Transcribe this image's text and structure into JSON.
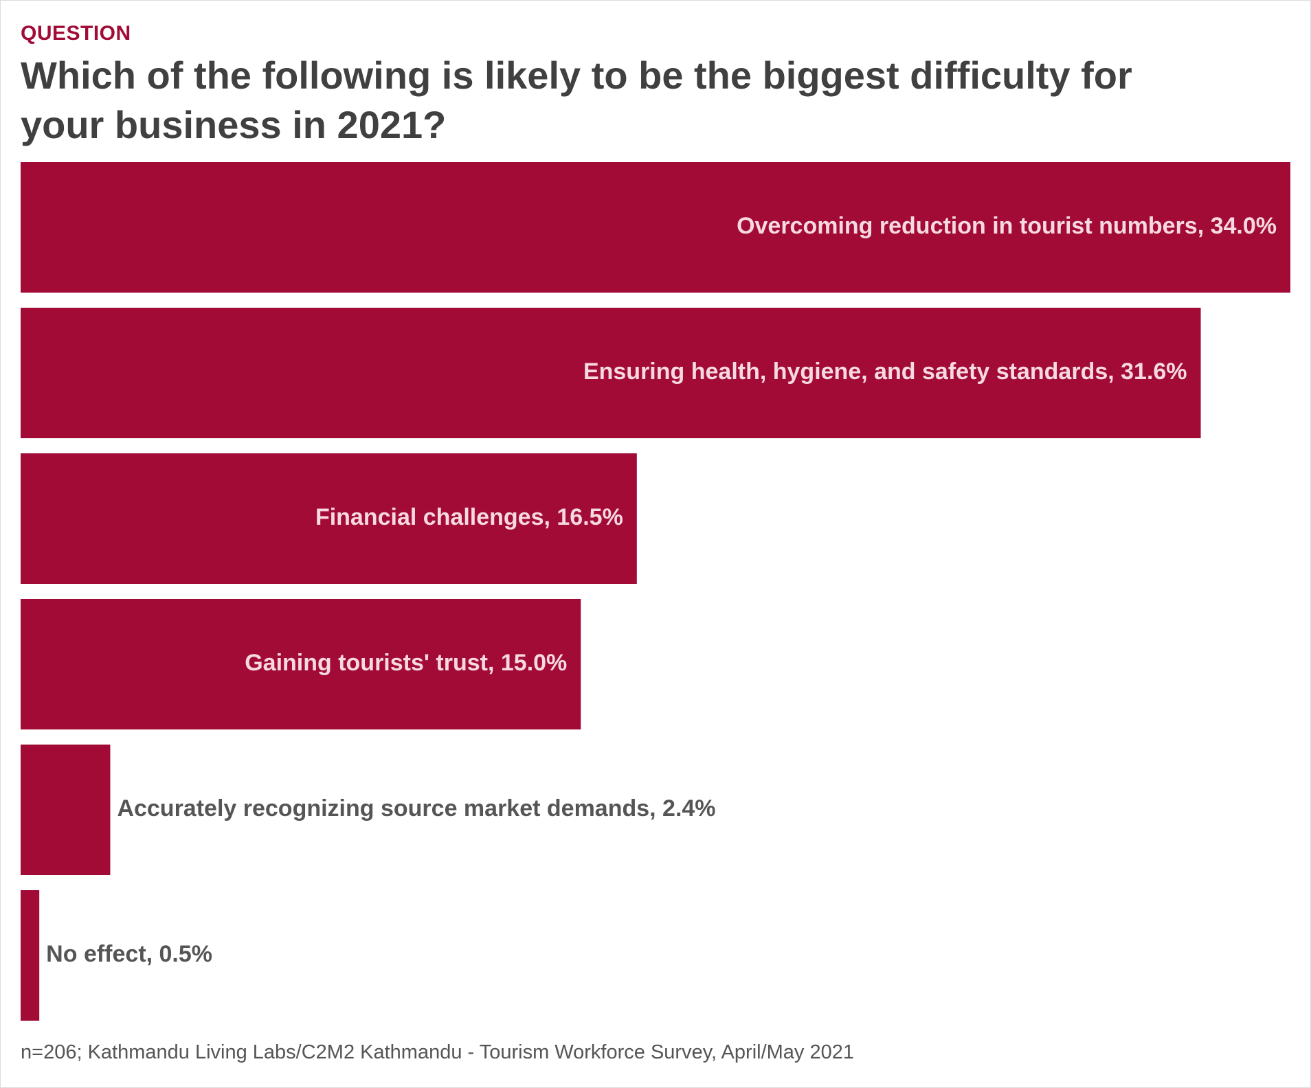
{
  "header": {
    "kicker": "QUESTION",
    "title": "Which of the following is likely to be the biggest difficulty for your business in 2021?"
  },
  "footnote": "n=206; Kathmandu Living Labs/C2M2 Kathmandu - Tourism Workforce Survey, April/May 2021",
  "colors": {
    "bar": "#a20b36",
    "label_inside": "#f6d9e1",
    "label_outside": "#555555"
  },
  "chart_data": {
    "type": "bar",
    "orientation": "horizontal",
    "title": "Which of the following is likely to be the biggest difficulty for your business in 2021?",
    "xlim": [
      0,
      34.0
    ],
    "grid": false,
    "legend": "none",
    "categories": [
      "Overcoming reduction in tourist numbers",
      "Ensuring health, hygiene, and safety standards",
      "Financial challenges",
      "Gaining tourists' trust",
      "Accurately recognizing source market demands",
      "No effect"
    ],
    "values": [
      34.0,
      31.6,
      16.5,
      15.0,
      2.4,
      0.5
    ],
    "labels": [
      "Overcoming reduction in tourist numbers, 34.0%",
      "Ensuring health, hygiene, and safety standards, 31.6%",
      "Financial challenges, 16.5%",
      "Gaining tourists' trust, 15.0%",
      "Accurately recognizing source market demands, 2.4%",
      "No effect, 0.5%"
    ]
  }
}
